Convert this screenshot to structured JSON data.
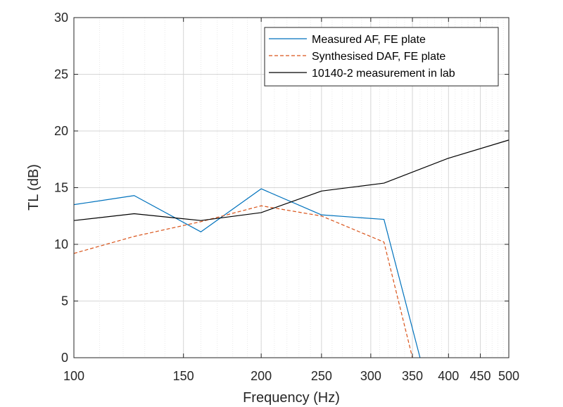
{
  "chart_data": {
    "type": "line",
    "title": "",
    "xlabel": "Frequency (Hz)",
    "ylabel": "TL (dB)",
    "xscale": "log",
    "xlim": [
      100,
      500
    ],
    "ylim": [
      0,
      30
    ],
    "xticks": [
      100,
      150,
      200,
      250,
      300,
      350,
      400,
      450,
      500
    ],
    "yticks": [
      0,
      5,
      10,
      15,
      20,
      25,
      30
    ],
    "grid": true,
    "legend_position": "top-right",
    "series": [
      {
        "name": "Measured AF, FE plate",
        "color": "#0072BD",
        "style": "solid",
        "x": [
          100,
          125,
          160,
          200,
          250,
          315,
          360
        ],
        "y": [
          13.5,
          14.3,
          11.1,
          14.9,
          12.6,
          12.2,
          0
        ]
      },
      {
        "name": "Synthesised DAF, FE plate",
        "color": "#D95319",
        "style": "dashed",
        "x": [
          100,
          125,
          160,
          200,
          250,
          315,
          350
        ],
        "y": [
          9.2,
          10.7,
          12.0,
          13.4,
          12.5,
          10.2,
          0
        ]
      },
      {
        "name": "10140-2 measurement in lab",
        "color": "#000000",
        "style": "solid",
        "x": [
          100,
          125,
          160,
          200,
          250,
          315,
          400,
          500
        ],
        "y": [
          12.1,
          12.7,
          12.1,
          12.8,
          14.7,
          15.4,
          17.6,
          19.2
        ]
      }
    ]
  }
}
